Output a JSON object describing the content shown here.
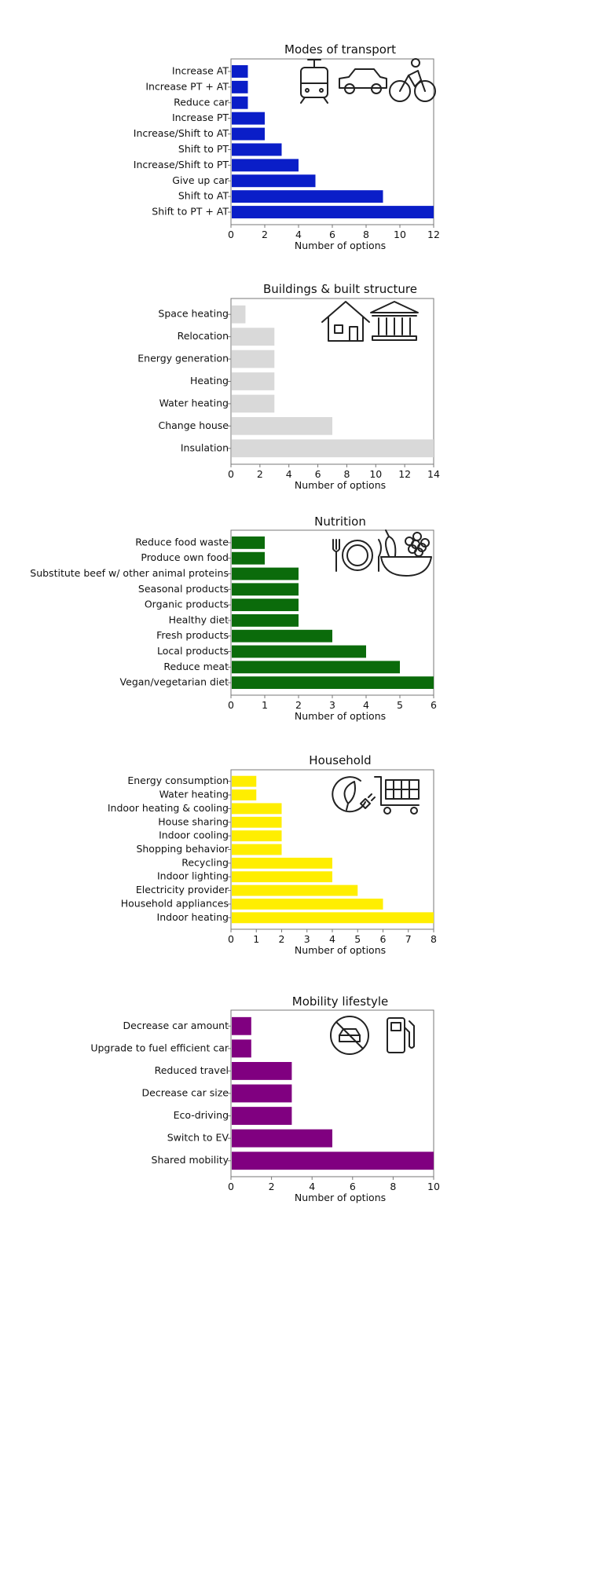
{
  "xlabel": "Number of options",
  "chart_data": [
    {
      "type": "bar",
      "orientation": "horizontal",
      "title": "Modes of transport",
      "xlabel": "Number of options",
      "color": "#0a1ec8",
      "xlim": [
        0,
        12
      ],
      "xticks": [
        0,
        2,
        4,
        6,
        8,
        10,
        12
      ],
      "categories": [
        "Increase AT",
        "Increase PT + AT",
        "Reduce car",
        "Increase PT",
        "Increase/Shift to AT",
        "Shift to PT",
        "Increase/Shift to PT",
        "Give up car",
        "Shift to AT",
        "Shift to PT + AT"
      ],
      "values": [
        1,
        1,
        1,
        2,
        2,
        3,
        4,
        5,
        9,
        12
      ],
      "icons": [
        "tram-icon",
        "car-icon",
        "cyclist-icon"
      ]
    },
    {
      "type": "bar",
      "orientation": "horizontal",
      "title": "Buildings & built structure",
      "xlabel": "Number of options",
      "color": "#d9d9d9",
      "xlim": [
        0,
        14
      ],
      "xticks": [
        0,
        2,
        4,
        6,
        8,
        10,
        12,
        14
      ],
      "categories": [
        "Space heating",
        "Relocation",
        "Energy generation",
        "Heating",
        "Water heating",
        "Change house",
        "Insulation"
      ],
      "values": [
        1,
        3,
        3,
        3,
        3,
        7,
        14
      ],
      "icons": [
        "house-icon",
        "public-building-icon"
      ]
    },
    {
      "type": "bar",
      "orientation": "horizontal",
      "title": "Nutrition",
      "xlabel": "Number of options",
      "color": "#0b6b0b",
      "xlim": [
        0,
        6
      ],
      "xticks": [
        0,
        1,
        2,
        3,
        4,
        5,
        6
      ],
      "categories": [
        "Reduce food waste",
        "Produce own food",
        "Substitute beef w/ other animal proteins",
        "Seasonal products",
        "Organic products",
        "Healthy diet",
        "Fresh products",
        "Local products",
        "Reduce meat",
        "Vegan/vegetarian diet"
      ],
      "values": [
        1,
        1,
        2,
        2,
        2,
        2,
        3,
        4,
        5,
        6
      ],
      "icons": [
        "plate-cutlery-icon",
        "fruit-bowl-icon"
      ]
    },
    {
      "type": "bar",
      "orientation": "horizontal",
      "title": "Household",
      "xlabel": "Number of options",
      "color": "#ffee00",
      "xlim": [
        0,
        8
      ],
      "xticks": [
        0,
        1,
        2,
        3,
        4,
        5,
        6,
        7,
        8
      ],
      "categories": [
        "Energy consumption",
        "Water heating",
        "Indoor heating & cooling",
        "House sharing",
        "Indoor cooling",
        "Shopping behavior",
        "Recycling",
        "Indoor lighting",
        "Electricity provider",
        "Household appliances",
        "Indoor heating"
      ],
      "values": [
        1,
        1,
        2,
        2,
        2,
        2,
        4,
        4,
        5,
        6,
        8
      ],
      "icons": [
        "eco-plug-icon",
        "shopping-cart-icon"
      ]
    },
    {
      "type": "bar",
      "orientation": "horizontal",
      "title": "Mobility lifestyle",
      "xlabel": "Number of options",
      "color": "#800080",
      "xlim": [
        0,
        10
      ],
      "xticks": [
        0,
        2,
        4,
        6,
        8,
        10
      ],
      "categories": [
        "Decrease car amount",
        "Upgrade to fuel efficient car",
        "Reduced travel",
        "Decrease car size",
        "Eco-driving",
        "Switch to EV",
        "Shared mobility"
      ],
      "values": [
        1,
        1,
        3,
        3,
        3,
        5,
        10
      ],
      "icons": [
        "no-car-icon",
        "fuel-pump-icon"
      ]
    }
  ]
}
